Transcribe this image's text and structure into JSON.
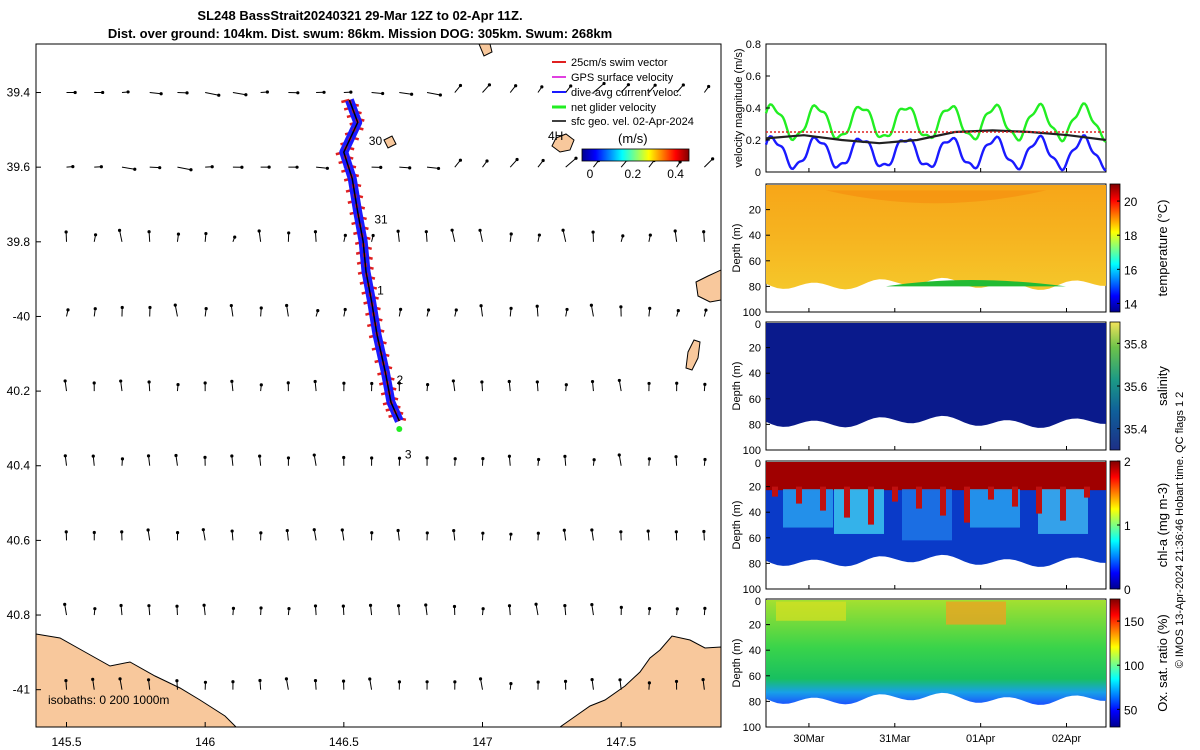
{
  "title_line1": "SL248 BassStrait20240321 29-Mar 12Z to 02-Apr 11Z.",
  "title_line2": "Dist. over ground: 104km. Dist. swum: 86km. Mission DOG: 305km. Swum: 268km",
  "watermark": "© IMOS 13-Apr-2024 21:36:46 Hobart time. QC flags 1 2",
  "colors": {
    "land": "#f8c89c",
    "swim": "#e02020",
    "gps": "#e040e0",
    "dive": "#1a1aff",
    "net": "#22ee22",
    "geo": "#000000"
  },
  "chart_data": [
    {
      "type": "map",
      "name": "track_map",
      "xlim": [
        145.39,
        147.86
      ],
      "ylim_south": [
        39.27,
        41.1
      ],
      "x_tick_labels": [
        "145.5",
        "146",
        "146.5",
        "147",
        "147.5"
      ],
      "x_ticks": [
        145.5,
        146,
        146.5,
        147,
        147.5
      ],
      "y_tick_labels": [
        "39.4",
        "39.6",
        "39.8",
        "-40",
        "40.2",
        "40.4",
        "40.6",
        "40.8",
        "-41"
      ],
      "y_ticks": [
        39.4,
        39.6,
        39.8,
        40.0,
        40.2,
        40.4,
        40.6,
        40.8,
        41.0
      ],
      "legend": [
        "25cm/s swim vector",
        "GPS surface velocity",
        "dive-avg current veloc.",
        "net glider velocity",
        "sfc geo. vel. 02-Apr-2024"
      ],
      "colorbar_label": "(m/s)",
      "colorbar_ticks": [
        "0",
        "0.2",
        "0.4"
      ],
      "colorbar_range": [
        0,
        0.5
      ],
      "isobaths_label": "isobaths: 0   200  1000m",
      "island_label": "4H",
      "day_labels": [
        {
          "text": "30",
          "lon": 146.59,
          "lat": 39.53
        },
        {
          "text": "31",
          "lon": 146.61,
          "lat": 39.74
        },
        {
          "text": "1",
          "lon": 146.62,
          "lat": 39.93
        },
        {
          "text": "2",
          "lon": 146.69,
          "lat": 40.17
        },
        {
          "text": "3",
          "lon": 146.72,
          "lat": 40.37
        }
      ],
      "track": [
        [
          146.52,
          39.42
        ],
        [
          146.55,
          39.48
        ],
        [
          146.5,
          39.56
        ],
        [
          146.53,
          39.63
        ],
        [
          146.55,
          39.72
        ],
        [
          146.57,
          39.8
        ],
        [
          146.58,
          39.88
        ],
        [
          146.6,
          39.96
        ],
        [
          146.62,
          40.05
        ],
        [
          146.65,
          40.15
        ],
        [
          146.67,
          40.23
        ],
        [
          146.7,
          40.28
        ]
      ]
    },
    {
      "type": "line",
      "name": "velocity_magnitude",
      "ylabel": "velocity magnitude (m/s)",
      "ylim": [
        0,
        0.8
      ],
      "y_ticks": [
        "0",
        "0.2",
        "0.4",
        "0.6",
        "0.8"
      ],
      "x_day_start": 29.5,
      "x_day_end": 33.46,
      "x_tick_labels": [
        "30Mar",
        "31Mar",
        "01Apr",
        "02Apr"
      ],
      "x_ticks_day": [
        30,
        31,
        32,
        33
      ],
      "series": [
        {
          "name": "net glider velocity",
          "color": "#22ee22",
          "mean": 0.31,
          "amp": 0.1,
          "period_h": 12.4
        },
        {
          "name": "dive-avg current",
          "color": "#1a1aff",
          "mean": 0.12,
          "amp": 0.09,
          "period_h": 12.4
        },
        {
          "name": "sfc geo. vel.",
          "color": "#222222",
          "values": [
            0.21,
            0.23,
            0.2,
            0.18,
            0.2,
            0.25,
            0.26,
            0.25,
            0.23,
            0.2
          ]
        },
        {
          "name": "25cm/s swim",
          "color": "#e02020",
          "constant": 0.25
        }
      ]
    },
    {
      "type": "heatmap",
      "name": "temperature",
      "clabel": "temperature (°C)",
      "ylabel": "Depth (m)",
      "ylim": [
        0,
        100
      ],
      "y_ticks": [
        "20",
        "40",
        "60",
        "80",
        "100"
      ],
      "y_top_label": "",
      "clim": [
        13.5,
        21
      ],
      "colorbar_ticks": [
        "14",
        "16",
        "18",
        "20"
      ],
      "colorbar_values": [
        14,
        16,
        18,
        20
      ]
    },
    {
      "type": "heatmap",
      "name": "salinity",
      "clabel": "salinity",
      "ylabel": "Depth (m)",
      "ylim": [
        0,
        100
      ],
      "y_ticks": [
        "20",
        "40",
        "60",
        "80",
        "100"
      ],
      "y_top_label": "0",
      "clim": [
        35.3,
        35.9
      ],
      "colorbar_ticks": [
        "35.4",
        "35.6",
        "35.8"
      ],
      "colorbar_values": [
        35.4,
        35.6,
        35.8
      ]
    },
    {
      "type": "heatmap",
      "name": "chl_a",
      "clabel": "chl-a (mg m-3)",
      "ylabel": "Depth (m)",
      "ylim": [
        0,
        100
      ],
      "y_ticks": [
        "20",
        "40",
        "60",
        "80",
        "100"
      ],
      "y_top_label": "0",
      "clim": [
        0,
        2
      ],
      "colorbar_ticks": [
        "0",
        "1",
        "2"
      ],
      "colorbar_values": [
        0,
        1,
        2
      ]
    },
    {
      "type": "heatmap",
      "name": "oxygen",
      "clabel": "Ox. sat. ratio (%)",
      "ylabel": "Depth (m)",
      "ylim": [
        0,
        100
      ],
      "y_ticks": [
        "20",
        "40",
        "60",
        "80",
        "100"
      ],
      "y_top_label": "0",
      "clim": [
        30,
        175
      ],
      "colorbar_ticks": [
        "50",
        "100",
        "150"
      ],
      "colorbar_values": [
        50,
        100,
        150
      ]
    }
  ]
}
